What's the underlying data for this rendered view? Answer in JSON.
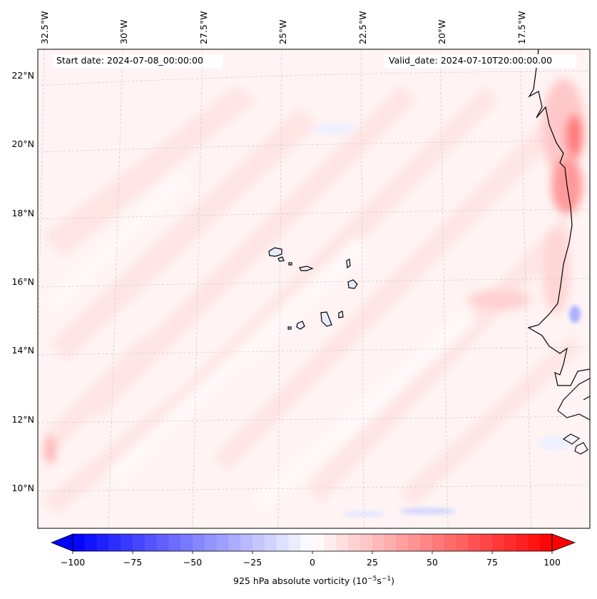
{
  "header": {
    "start_date": "Start date: 2024-07-08_00:00:00",
    "valid_date": "Valid_date: 2024-07-10T20:00:00.00"
  },
  "map": {
    "region": "Eastern tropical Atlantic / Cabo Verde and West African coast",
    "lon_ticks": [
      "32.5°W",
      "30°W",
      "27.5°W",
      "25°W",
      "22.5°W",
      "20°W",
      "17.5°W"
    ],
    "lat_ticks": [
      "22°N",
      "20°N",
      "18°N",
      "16°N",
      "14°N",
      "12°N",
      "10°N"
    ]
  },
  "colorbar": {
    "label_main": "925 hPa absolute vorticity (10",
    "label_exp1": "−5",
    "label_mid": "s",
    "label_exp2": "−1",
    "label_end": ")",
    "ticks": [
      "−100",
      "−75",
      "−50",
      "−25",
      "0",
      "25",
      "50",
      "75",
      "100"
    ],
    "vmin": -100,
    "vmax": 100,
    "levels": 40,
    "colors": {
      "neg": "#0000ff",
      "mid": "#ffffff",
      "pos": "#ff0000"
    }
  }
}
